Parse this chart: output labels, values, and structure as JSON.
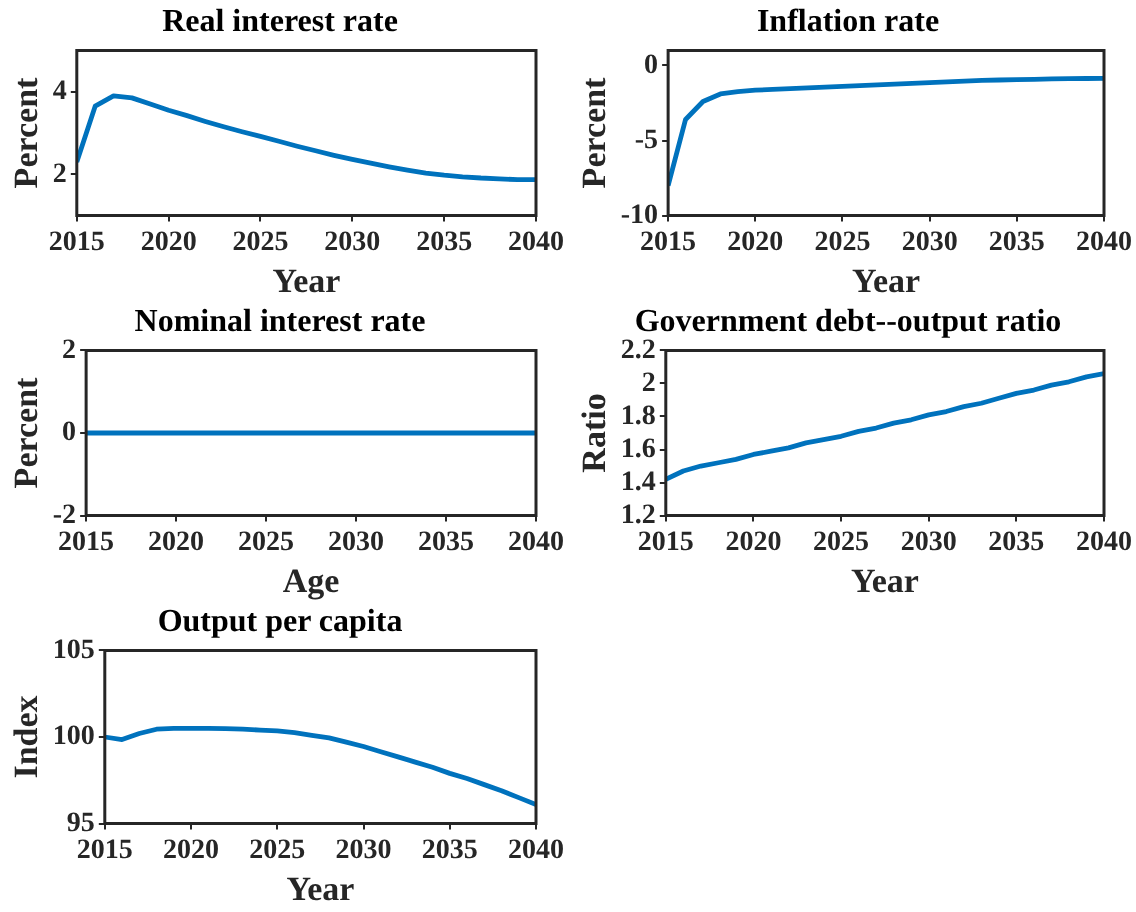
{
  "chart_data": [
    {
      "type": "line",
      "title": "Real interest rate",
      "xlabel": "Year",
      "ylabel": "Percent",
      "color": "#0072bd",
      "grid": false,
      "legend": false,
      "x": [
        2015,
        2016,
        2017,
        2018,
        2019,
        2020,
        2021,
        2022,
        2023,
        2024,
        2025,
        2026,
        2027,
        2028,
        2029,
        2030,
        2031,
        2032,
        2033,
        2034,
        2035,
        2036,
        2037,
        2038,
        2039,
        2040
      ],
      "values": [
        2.3,
        3.65,
        3.9,
        3.85,
        3.7,
        3.55,
        3.42,
        3.28,
        3.15,
        3.03,
        2.92,
        2.8,
        2.68,
        2.57,
        2.46,
        2.36,
        2.27,
        2.18,
        2.1,
        2.03,
        1.98,
        1.94,
        1.91,
        1.89,
        1.87,
        1.87
      ],
      "xlim": [
        2015,
        2040
      ],
      "xticks": [
        2015,
        2020,
        2025,
        2030,
        2035,
        2040
      ],
      "ylim": [
        1,
        5
      ],
      "yticks": [
        2,
        4
      ]
    },
    {
      "type": "line",
      "title": "Inflation rate",
      "xlabel": "Year",
      "ylabel": "Percent",
      "color": "#0072bd",
      "grid": false,
      "legend": false,
      "x": [
        2015,
        2016,
        2017,
        2018,
        2019,
        2020,
        2021,
        2022,
        2023,
        2024,
        2025,
        2026,
        2027,
        2028,
        2029,
        2030,
        2031,
        2032,
        2033,
        2034,
        2035,
        2036,
        2037,
        2038,
        2039,
        2040
      ],
      "values": [
        -8,
        -3.6,
        -2.4,
        -1.9,
        -1.75,
        -1.65,
        -1.6,
        -1.55,
        -1.5,
        -1.45,
        -1.4,
        -1.35,
        -1.3,
        -1.25,
        -1.2,
        -1.15,
        -1.1,
        -1.05,
        -1,
        -0.97,
        -0.95,
        -0.93,
        -0.9,
        -0.88,
        -0.87,
        -0.86
      ],
      "xlim": [
        2015,
        2040
      ],
      "xticks": [
        2015,
        2020,
        2025,
        2030,
        2035,
        2040
      ],
      "ylim": [
        -10,
        1
      ],
      "yticks": [
        -10,
        -5,
        0
      ]
    },
    {
      "type": "line",
      "title": "Nominal interest rate",
      "xlabel": "Age",
      "ylabel": "Percent",
      "color": "#0072bd",
      "grid": false,
      "legend": false,
      "x": [
        2015,
        2016,
        2017,
        2018,
        2019,
        2020,
        2021,
        2022,
        2023,
        2024,
        2025,
        2026,
        2027,
        2028,
        2029,
        2030,
        2031,
        2032,
        2033,
        2034,
        2035,
        2036,
        2037,
        2038,
        2039,
        2040
      ],
      "values": [
        0,
        0,
        0,
        0,
        0,
        0,
        0,
        0,
        0,
        0,
        0,
        0,
        0,
        0,
        0,
        0,
        0,
        0,
        0,
        0,
        0,
        0,
        0,
        0,
        0,
        0
      ],
      "xlim": [
        2015,
        2040
      ],
      "xticks": [
        2015,
        2020,
        2025,
        2030,
        2035,
        2040
      ],
      "ylim": [
        -2,
        2
      ],
      "yticks": [
        -2,
        0,
        2
      ]
    },
    {
      "type": "line",
      "title": "Government debt--output ratio",
      "xlabel": "Year",
      "ylabel": "Ratio",
      "color": "#0072bd",
      "grid": false,
      "legend": false,
      "x": [
        2015,
        2016,
        2017,
        2018,
        2019,
        2020,
        2021,
        2022,
        2023,
        2024,
        2025,
        2026,
        2027,
        2028,
        2029,
        2030,
        2031,
        2032,
        2033,
        2034,
        2035,
        2036,
        2037,
        2038,
        2039,
        2040
      ],
      "values": [
        1.42,
        1.47,
        1.5,
        1.52,
        1.54,
        1.57,
        1.59,
        1.61,
        1.64,
        1.66,
        1.68,
        1.71,
        1.73,
        1.76,
        1.78,
        1.81,
        1.83,
        1.86,
        1.88,
        1.91,
        1.94,
        1.96,
        1.99,
        2.01,
        2.04,
        2.06
      ],
      "xlim": [
        2015,
        2040
      ],
      "xticks": [
        2015,
        2020,
        2025,
        2030,
        2035,
        2040
      ],
      "ylim": [
        1.2,
        2.2
      ],
      "yticks": [
        1.2,
        1.4,
        1.6,
        1.8,
        2,
        2.2
      ]
    },
    {
      "type": "line",
      "title": "Output per capita",
      "xlabel": "Year",
      "ylabel": "Index",
      "color": "#0072bd",
      "grid": false,
      "legend": false,
      "x": [
        2015,
        2016,
        2017,
        2018,
        2019,
        2020,
        2021,
        2022,
        2023,
        2024,
        2025,
        2026,
        2027,
        2028,
        2029,
        2030,
        2031,
        2032,
        2033,
        2034,
        2035,
        2036,
        2037,
        2038,
        2039,
        2040
      ],
      "values": [
        100,
        99.85,
        100.2,
        100.45,
        100.5,
        100.5,
        100.5,
        100.48,
        100.45,
        100.4,
        100.35,
        100.25,
        100.1,
        99.95,
        99.7,
        99.45,
        99.15,
        98.85,
        98.55,
        98.25,
        97.9,
        97.6,
        97.25,
        96.9,
        96.5,
        96.1
      ],
      "xlim": [
        2015,
        2040
      ],
      "xticks": [
        2015,
        2020,
        2025,
        2030,
        2035,
        2040
      ],
      "ylim": [
        95,
        105
      ],
      "yticks": [
        95,
        100,
        105
      ]
    }
  ]
}
